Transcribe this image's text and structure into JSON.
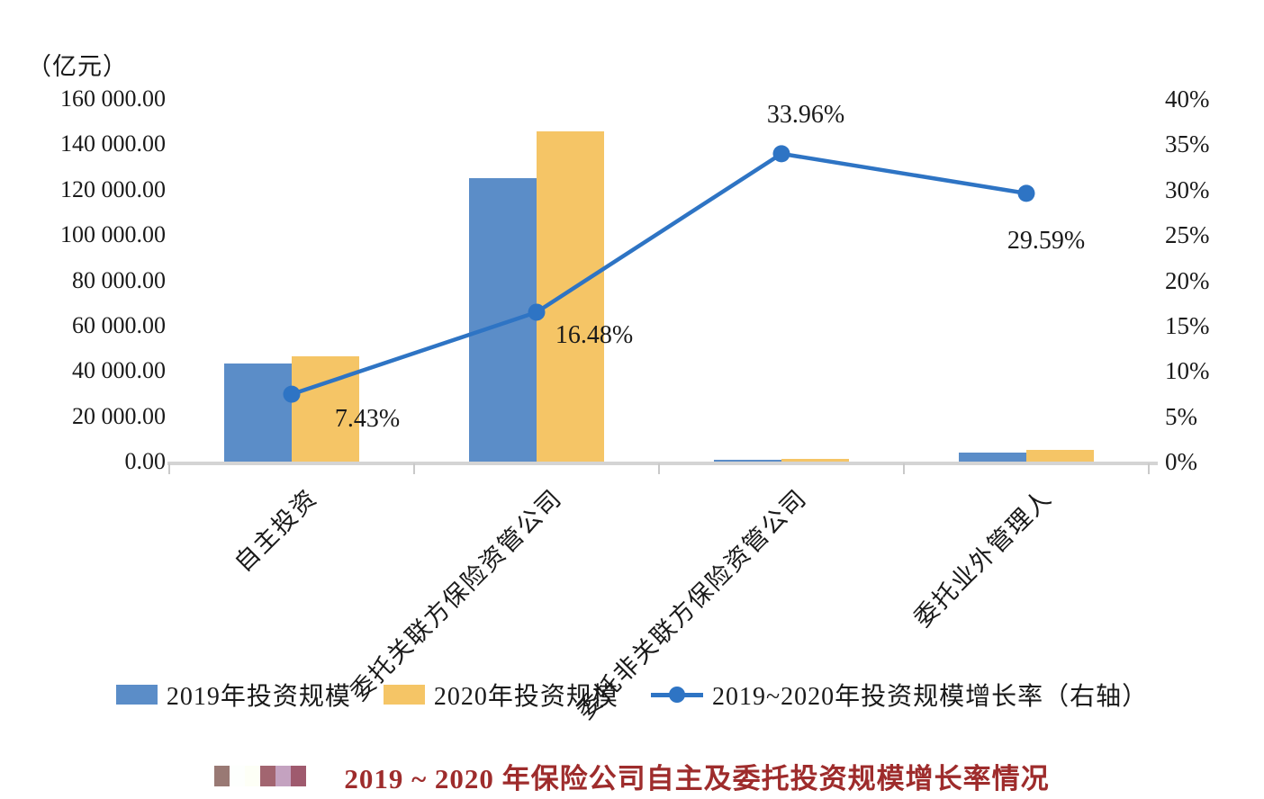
{
  "unit_label": "（亿元）",
  "title": {
    "text": "2019 ~ 2020 年保险公司自主及委托投资规模增长率情况",
    "color": "#9e2c2c",
    "mosaic_colors": [
      "#997974",
      "#fdfffd",
      "#fdfff6",
      "#a26570",
      "#c4a2c0",
      "#9f5a6e"
    ]
  },
  "chart_data": {
    "type": "bar",
    "subtype": "grouped-bars-with-line-on-secondary-axis",
    "categories": [
      "自主投资",
      "委托关联方保险资管公司",
      "委托非关联方保险资管公司",
      "委托业外管理人"
    ],
    "series": [
      {
        "name": "2019年投资规模",
        "kind": "bar",
        "color": "#5b8dc8",
        "values": [
          43300,
          125100,
          900,
          4000
        ]
      },
      {
        "name": "2020年投资规模",
        "kind": "bar",
        "color": "#f5c566",
        "values": [
          46520,
          145720,
          1206,
          5180
        ]
      },
      {
        "name": "2019~2020年投资规模增长率（右轴）",
        "kind": "line",
        "color": "#2e74c4",
        "axis": "right",
        "values": [
          7.43,
          16.48,
          33.96,
          29.59
        ],
        "point_labels": [
          "7.43%",
          "16.48%",
          "33.96%",
          "29.59%"
        ]
      }
    ],
    "left_axis": {
      "title": "（亿元）",
      "min": 0,
      "max": 160000,
      "tick_labels": [
        "160 000.00",
        "140 000.00",
        "120 000.00",
        "100 000.00",
        "80 000.00",
        "60 000.00",
        "40 000.00",
        "20 000.00",
        "0.00"
      ]
    },
    "right_axis": {
      "min": 0,
      "max": 40,
      "tick_labels": [
        "40%",
        "35%",
        "30%",
        "25%",
        "20%",
        "15%",
        "10%",
        "5%",
        "0%"
      ]
    },
    "grid": false,
    "legend_position": "bottom",
    "axis_color": "#d4d4d4",
    "text_color": "#1a1a1a"
  }
}
